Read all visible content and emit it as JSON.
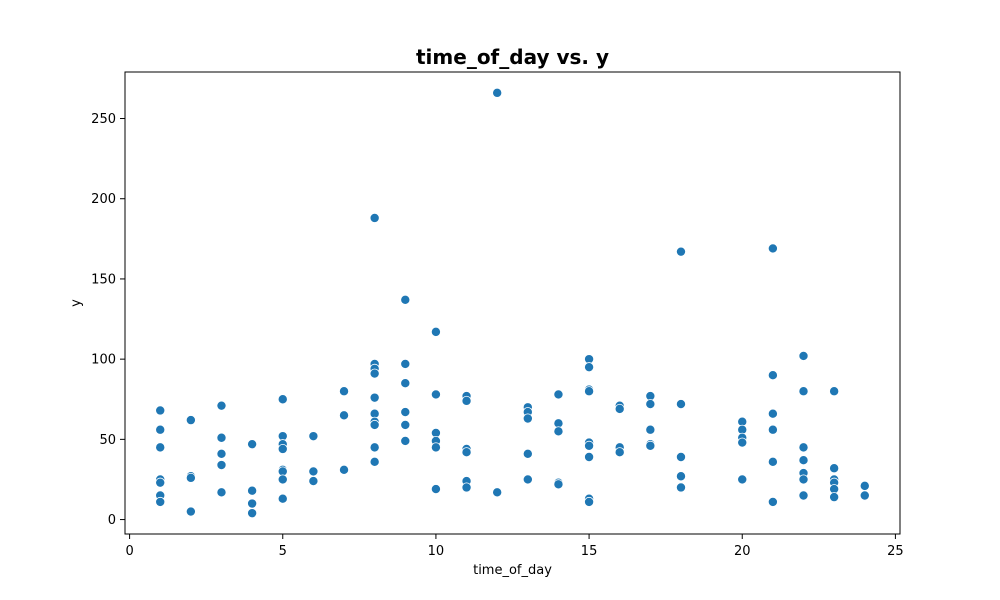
{
  "chart_data": {
    "type": "scatter",
    "title": "time_of_day vs. y",
    "xlabel": "time_of_day",
    "ylabel": "y",
    "xlim": [
      -0.15,
      25.15
    ],
    "ylim": [
      -9,
      279
    ],
    "xticks": [
      0,
      5,
      10,
      15,
      20,
      25
    ],
    "yticks": [
      0,
      50,
      100,
      150,
      200,
      250
    ],
    "grid": false,
    "legend": "none",
    "marker_color": "#1f77b4",
    "points": [
      {
        "x": 1,
        "y": 68
      },
      {
        "x": 1,
        "y": 56
      },
      {
        "x": 1,
        "y": 45
      },
      {
        "x": 1,
        "y": 25
      },
      {
        "x": 1,
        "y": 23
      },
      {
        "x": 1,
        "y": 15
      },
      {
        "x": 1,
        "y": 11
      },
      {
        "x": 2,
        "y": 62
      },
      {
        "x": 2,
        "y": 27
      },
      {
        "x": 2,
        "y": 26
      },
      {
        "x": 2,
        "y": 5
      },
      {
        "x": 3,
        "y": 71
      },
      {
        "x": 3,
        "y": 51
      },
      {
        "x": 3,
        "y": 41
      },
      {
        "x": 3,
        "y": 34
      },
      {
        "x": 3,
        "y": 17
      },
      {
        "x": 4,
        "y": 47
      },
      {
        "x": 4,
        "y": 18
      },
      {
        "x": 4,
        "y": 10
      },
      {
        "x": 4,
        "y": 4
      },
      {
        "x": 5,
        "y": 75
      },
      {
        "x": 5,
        "y": 52
      },
      {
        "x": 5,
        "y": 47
      },
      {
        "x": 5,
        "y": 44
      },
      {
        "x": 5,
        "y": 31
      },
      {
        "x": 5,
        "y": 30
      },
      {
        "x": 5,
        "y": 25
      },
      {
        "x": 5,
        "y": 13
      },
      {
        "x": 6,
        "y": 52
      },
      {
        "x": 6,
        "y": 30
      },
      {
        "x": 6,
        "y": 24
      },
      {
        "x": 7,
        "y": 80
      },
      {
        "x": 7,
        "y": 65
      },
      {
        "x": 7,
        "y": 31
      },
      {
        "x": 8,
        "y": 188
      },
      {
        "x": 8,
        "y": 97
      },
      {
        "x": 8,
        "y": 94
      },
      {
        "x": 8,
        "y": 91
      },
      {
        "x": 8,
        "y": 76
      },
      {
        "x": 8,
        "y": 66
      },
      {
        "x": 8,
        "y": 61
      },
      {
        "x": 8,
        "y": 59
      },
      {
        "x": 8,
        "y": 45
      },
      {
        "x": 8,
        "y": 36
      },
      {
        "x": 9,
        "y": 137
      },
      {
        "x": 9,
        "y": 97
      },
      {
        "x": 9,
        "y": 85
      },
      {
        "x": 9,
        "y": 67
      },
      {
        "x": 9,
        "y": 59
      },
      {
        "x": 9,
        "y": 49
      },
      {
        "x": 10,
        "y": 117
      },
      {
        "x": 10,
        "y": 78
      },
      {
        "x": 10,
        "y": 54
      },
      {
        "x": 10,
        "y": 49
      },
      {
        "x": 10,
        "y": 45
      },
      {
        "x": 10,
        "y": 19
      },
      {
        "x": 11,
        "y": 77
      },
      {
        "x": 11,
        "y": 74
      },
      {
        "x": 11,
        "y": 44
      },
      {
        "x": 11,
        "y": 42
      },
      {
        "x": 11,
        "y": 24
      },
      {
        "x": 11,
        "y": 20
      },
      {
        "x": 12,
        "y": 266
      },
      {
        "x": 12,
        "y": 17
      },
      {
        "x": 13,
        "y": 70
      },
      {
        "x": 13,
        "y": 67
      },
      {
        "x": 13,
        "y": 63
      },
      {
        "x": 13,
        "y": 41
      },
      {
        "x": 13,
        "y": 25
      },
      {
        "x": 14,
        "y": 78
      },
      {
        "x": 14,
        "y": 60
      },
      {
        "x": 14,
        "y": 55
      },
      {
        "x": 14,
        "y": 23
      },
      {
        "x": 14,
        "y": 22
      },
      {
        "x": 15,
        "y": 100
      },
      {
        "x": 15,
        "y": 95
      },
      {
        "x": 15,
        "y": 81
      },
      {
        "x": 15,
        "y": 80
      },
      {
        "x": 15,
        "y": 48
      },
      {
        "x": 15,
        "y": 46
      },
      {
        "x": 15,
        "y": 39
      },
      {
        "x": 15,
        "y": 13
      },
      {
        "x": 15,
        "y": 11
      },
      {
        "x": 16,
        "y": 71
      },
      {
        "x": 16,
        "y": 69
      },
      {
        "x": 16,
        "y": 45
      },
      {
        "x": 16,
        "y": 42
      },
      {
        "x": 17,
        "y": 77
      },
      {
        "x": 17,
        "y": 72
      },
      {
        "x": 17,
        "y": 56
      },
      {
        "x": 17,
        "y": 47
      },
      {
        "x": 17,
        "y": 46
      },
      {
        "x": 18,
        "y": 167
      },
      {
        "x": 18,
        "y": 72
      },
      {
        "x": 18,
        "y": 39
      },
      {
        "x": 18,
        "y": 27
      },
      {
        "x": 18,
        "y": 20
      },
      {
        "x": 20,
        "y": 61
      },
      {
        "x": 20,
        "y": 56
      },
      {
        "x": 20,
        "y": 51
      },
      {
        "x": 20,
        "y": 48
      },
      {
        "x": 20,
        "y": 25
      },
      {
        "x": 21,
        "y": 169
      },
      {
        "x": 21,
        "y": 90
      },
      {
        "x": 21,
        "y": 66
      },
      {
        "x": 21,
        "y": 56
      },
      {
        "x": 21,
        "y": 36
      },
      {
        "x": 21,
        "y": 11
      },
      {
        "x": 22,
        "y": 102
      },
      {
        "x": 22,
        "y": 80
      },
      {
        "x": 22,
        "y": 45
      },
      {
        "x": 22,
        "y": 37
      },
      {
        "x": 22,
        "y": 29
      },
      {
        "x": 22,
        "y": 25
      },
      {
        "x": 22,
        "y": 15
      },
      {
        "x": 23,
        "y": 80
      },
      {
        "x": 23,
        "y": 32
      },
      {
        "x": 23,
        "y": 25
      },
      {
        "x": 23,
        "y": 23
      },
      {
        "x": 23,
        "y": 19
      },
      {
        "x": 23,
        "y": 14
      },
      {
        "x": 24,
        "y": 21
      },
      {
        "x": 24,
        "y": 15
      }
    ]
  }
}
